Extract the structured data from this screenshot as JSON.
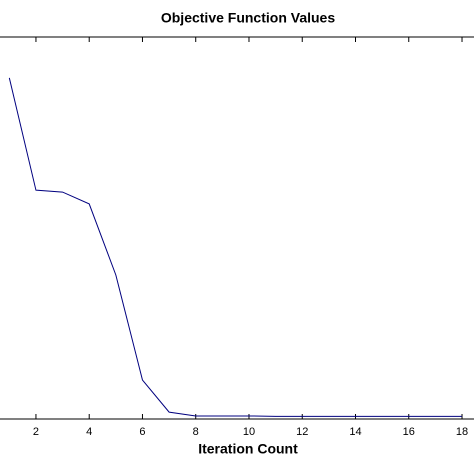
{
  "chart_data": {
    "type": "line",
    "title": "Objective Function Values",
    "x_label": "Iteration Count",
    "x": [
      1,
      2,
      3,
      4,
      5,
      6,
      7,
      8,
      9,
      10,
      11,
      12,
      13,
      14,
      15,
      16,
      17,
      18
    ],
    "series": [
      {
        "color": "#00007f",
        "values": [
          89.3,
          59.9,
          59.4,
          56.3,
          37.7,
          10.2,
          1.8,
          0.8,
          0.8,
          0.8,
          0.7,
          0.7,
          0.7,
          0.7,
          0.7,
          0.7,
          0.7,
          0.7
        ]
      }
    ],
    "xlim": [
      0.65,
      18.45
    ],
    "xticks": [
      2,
      4,
      6,
      8,
      10,
      12,
      14,
      16,
      18
    ],
    "ylim": [
      0,
      100
    ]
  }
}
